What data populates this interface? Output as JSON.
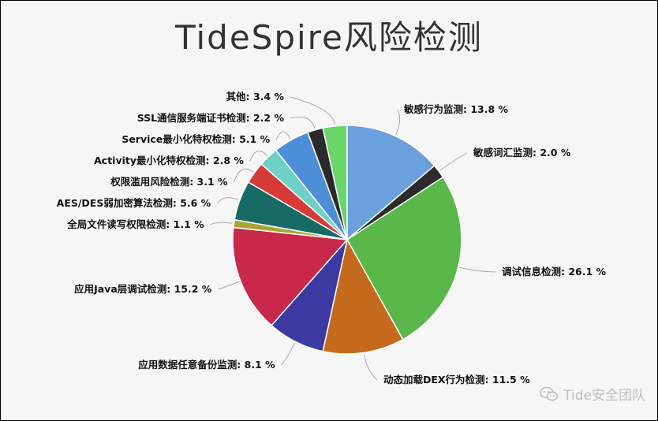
{
  "chart_data": {
    "type": "pie",
    "title": "TideSpire风险检测",
    "label_format": "{name}: {value} %",
    "start_angle_deg": 0,
    "direction": "clockwise",
    "slices": [
      {
        "name": "敏感行为监测",
        "value": 13.8,
        "color": "#6aa0dc",
        "label_side": "right"
      },
      {
        "name": "敏感词汇监测",
        "value": 2.0,
        "color": "#2b2b2b",
        "label_side": "right"
      },
      {
        "name": "调试信息检测",
        "value": 26.1,
        "color": "#5ab74a",
        "label_side": "right"
      },
      {
        "name": "动态加载DEX行为检测",
        "value": 11.5,
        "color": "#c56a1c",
        "label_side": "right"
      },
      {
        "name": "应用数据任意备份监测",
        "value": 8.1,
        "color": "#3c3aa0",
        "label_side": "left"
      },
      {
        "name": "应用Java层调试检测",
        "value": 15.2,
        "color": "#c8284a",
        "label_side": "left"
      },
      {
        "name": "全局文件读写权限检测",
        "value": 1.1,
        "color": "#a9a432",
        "label_side": "left"
      },
      {
        "name": "AES/DES弱加密算法检测",
        "value": 5.6,
        "color": "#176b64",
        "label_side": "left"
      },
      {
        "name": "权限滥用风险检测",
        "value": 3.1,
        "color": "#d63b38",
        "label_side": "left"
      },
      {
        "name": "Activity最小化特权检测",
        "value": 2.8,
        "color": "#6fd1c5",
        "label_side": "left"
      },
      {
        "name": "Service最小化特权检测",
        "value": 5.1,
        "color": "#4d8fd6",
        "label_side": "left"
      },
      {
        "name": "SSL通信服务端证书检测",
        "value": 2.2,
        "color": "#2a2a2a",
        "label_side": "left"
      },
      {
        "name": "其他",
        "value": 3.4,
        "color": "#6ad66a",
        "label_side": "left"
      }
    ]
  },
  "watermark": {
    "text": "Tide安全团队",
    "icon": "wechat-icon"
  }
}
